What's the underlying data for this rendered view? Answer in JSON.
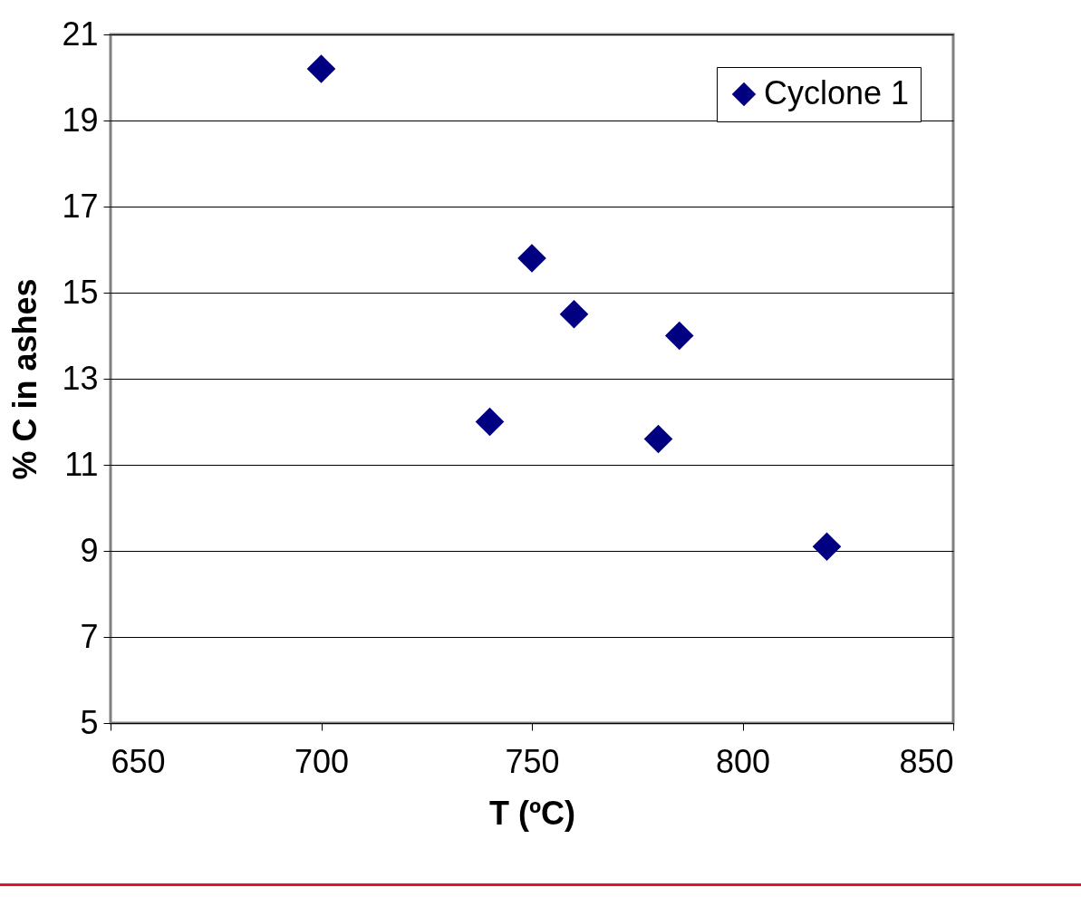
{
  "chart_data": {
    "type": "scatter",
    "xlabel": "T (ºC)",
    "ylabel": "% C in ashes",
    "x": [
      700,
      740,
      750,
      760,
      785,
      780,
      820
    ],
    "series": [
      {
        "name": "Cyclone 1",
        "color": "#000080",
        "values": [
          20.2,
          12.0,
          15.8,
          14.5,
          14.0,
          11.6,
          9.1
        ]
      }
    ],
    "xlim": [
      650,
      850
    ],
    "xticks": [
      650,
      700,
      750,
      800,
      850
    ],
    "ylim": [
      5,
      21
    ],
    "yticks": [
      5,
      7,
      9,
      11,
      13,
      15,
      17,
      19,
      21
    ],
    "grid": "y",
    "legend": "top right",
    "marker": "diamond"
  }
}
